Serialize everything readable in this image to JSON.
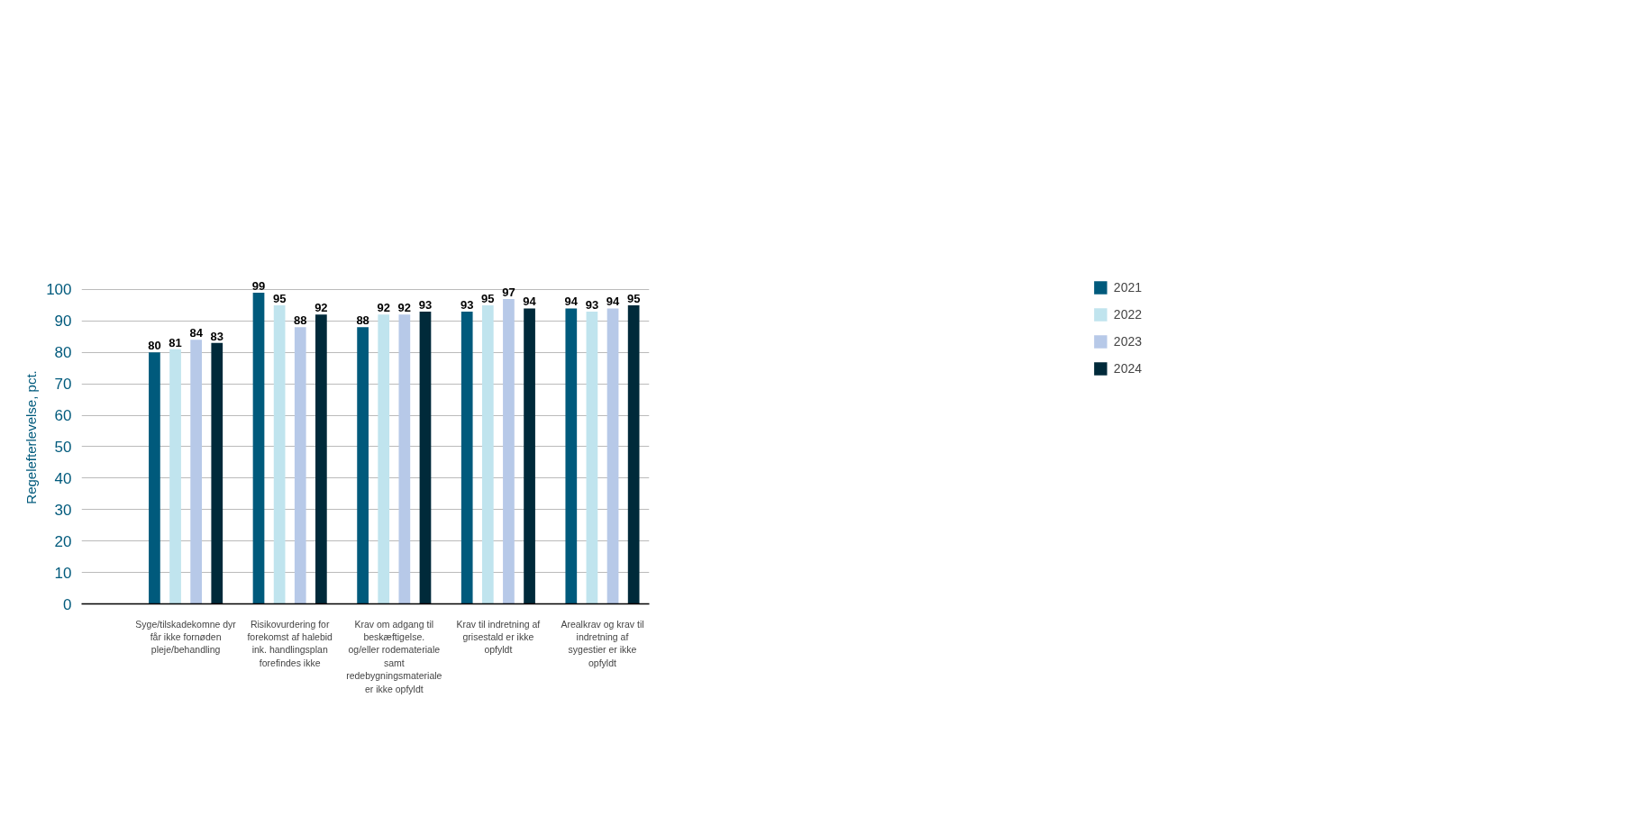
{
  "chart_data": {
    "type": "bar",
    "ylabel": "Regelefterlevelse, pct.",
    "categories": [
      "Syge/tilskadekomne dyr får ikke fornøden pleje/behandling",
      "Risikovurdering for forekomst af halebid ink. handlingsplan forefindes ikke",
      "Krav om adgang til beskæftigelse. og/eller rodemateriale samt redebygningsmateriale er ikke opfyldt",
      "Krav til indretning af grisestald er ikke opfyldt",
      "Arealkrav og krav til indretning af sygestier er ikke opfyldt"
    ],
    "series": [
      {
        "name": "2021",
        "color": "#005a7c",
        "values": [
          80,
          99,
          88,
          93,
          94
        ]
      },
      {
        "name": "2022",
        "color": "#c0e4ee",
        "values": [
          81,
          95,
          92,
          95,
          93
        ]
      },
      {
        "name": "2023",
        "color": "#b7c9e8",
        "values": [
          84,
          88,
          92,
          97,
          94
        ]
      },
      {
        "name": "2024",
        "color": "#002a3a",
        "values": [
          83,
          92,
          93,
          94,
          95
        ]
      }
    ],
    "ylim": [
      0,
      100
    ],
    "yticks": [
      0,
      10,
      20,
      30,
      40,
      50,
      60,
      70,
      80,
      90,
      100
    ],
    "grid": "y",
    "legend": "right",
    "data_labels": true
  }
}
